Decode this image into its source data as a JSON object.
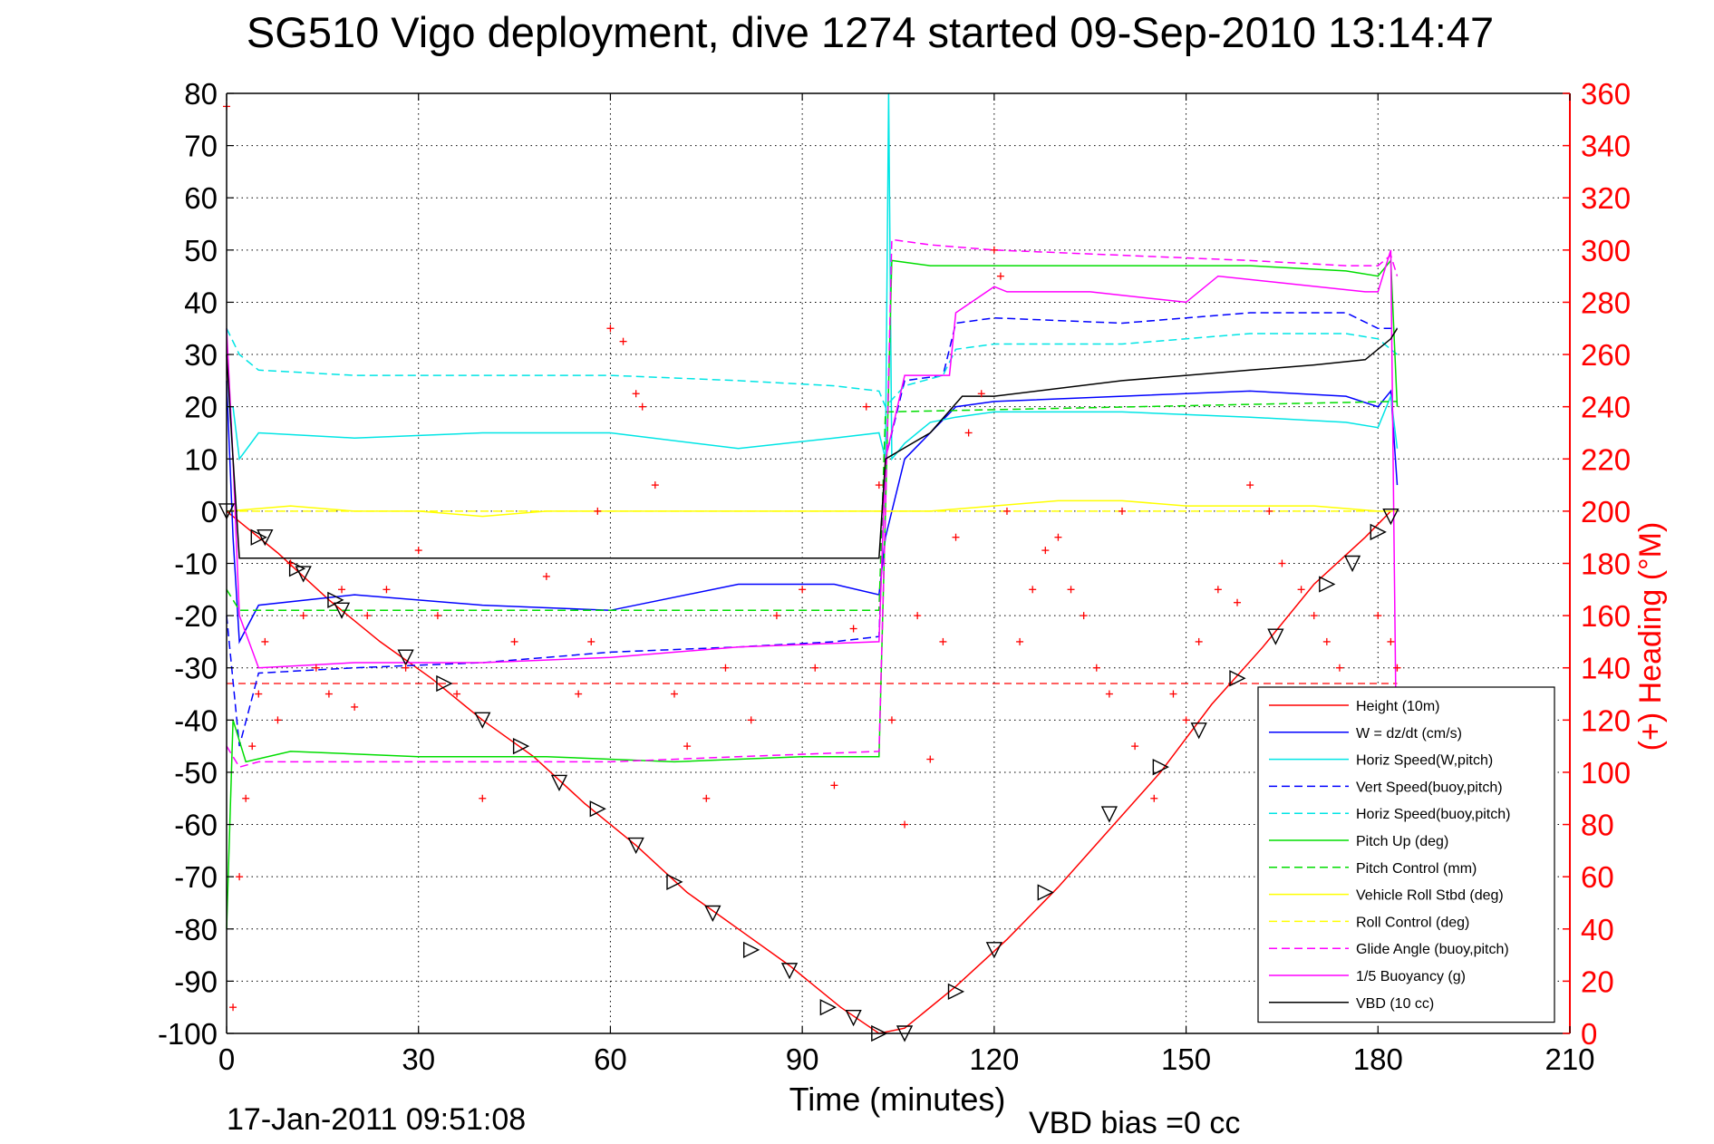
{
  "chart_data": {
    "type": "line",
    "title": "SG510 Vigo deployment, dive 1274 started 09-Sep-2010 13:14:47",
    "xlabel": "Time (minutes)",
    "ylabel_right": "(+) Heading (°M)",
    "xlim": [
      0,
      210
    ],
    "ylim": [
      -100,
      80
    ],
    "ylim_right": [
      0,
      360
    ],
    "xticks": [
      0,
      30,
      60,
      90,
      120,
      150,
      180,
      210
    ],
    "yticks": [
      -100,
      -90,
      -80,
      -70,
      -60,
      -50,
      -40,
      -30,
      -20,
      -10,
      0,
      10,
      20,
      30,
      40,
      50,
      60,
      70,
      80
    ],
    "yticks_right": [
      0,
      20,
      40,
      60,
      80,
      100,
      120,
      140,
      160,
      180,
      200,
      220,
      240,
      260,
      280,
      300,
      320,
      340,
      360
    ],
    "grid": true,
    "legend_position": "lower-right",
    "footer_date": "17-Jan-2011 09:51:08",
    "footer_bias": "VBD bias =0 cc",
    "colors": {
      "red": "#ff0000",
      "blue": "#0000ff",
      "cyan": "#00e5e5",
      "green": "#00dd00",
      "yellow": "#ffff00",
      "magenta": "#ff00ff",
      "black": "#000000"
    },
    "series": [
      {
        "name": "Height (10m)",
        "color": "#ff0000",
        "style": "solid",
        "x": [
          0,
          8,
          16,
          24,
          32,
          40,
          48,
          56,
          64,
          72,
          80,
          88,
          96,
          102,
          106,
          114,
          122,
          130,
          138,
          146,
          154,
          162,
          170,
          178,
          182
        ],
        "y": [
          0,
          -8,
          -17,
          -25,
          -32,
          -40,
          -47,
          -56,
          -64,
          -73,
          -80,
          -87,
          -95,
          -100,
          -99,
          -91,
          -82,
          -72,
          -61,
          -50,
          -37,
          -26,
          -14,
          -5,
          0
        ]
      },
      {
        "name": "W = dz/dt (cm/s)",
        "color": "#0000ff",
        "style": "solid",
        "x": [
          0,
          1,
          2,
          5,
          20,
          40,
          60,
          80,
          95,
          102,
          103,
          106,
          110,
          114,
          120,
          140,
          160,
          175,
          180,
          182,
          183
        ],
        "y": [
          25,
          -5,
          -25,
          -18,
          -16,
          -18,
          -19,
          -14,
          -14,
          -16,
          -5,
          10,
          15,
          20,
          21,
          22,
          23,
          22,
          20,
          23,
          5
        ]
      },
      {
        "name": "Horiz Speed(W,pitch)",
        "color": "#00e5e5",
        "style": "solid",
        "x": [
          0,
          1,
          2,
          5,
          20,
          40,
          60,
          80,
          95,
          102,
          103,
          103.5,
          104,
          106,
          110,
          114,
          120,
          140,
          160,
          175,
          180,
          182,
          183
        ],
        "y": [
          20,
          20,
          10,
          15,
          14,
          15,
          15,
          12,
          14,
          15,
          10,
          80,
          10,
          13,
          17,
          18,
          19,
          19,
          18,
          17,
          16,
          22,
          12
        ]
      },
      {
        "name": "Vert Speed(buoy,pitch)",
        "color": "#0000ff",
        "style": "dashed",
        "x": [
          0,
          2,
          5,
          20,
          40,
          60,
          80,
          95,
          102,
          103,
          106,
          112,
          114,
          120,
          140,
          160,
          175,
          180,
          183
        ],
        "y": [
          -20,
          -45,
          -31,
          -30,
          -29,
          -27,
          -26,
          -25,
          -24,
          10,
          25,
          26,
          36,
          37,
          36,
          38,
          38,
          35,
          35
        ]
      },
      {
        "name": "Horiz Speed(buoy,pitch)",
        "color": "#00e5e5",
        "style": "dashed",
        "x": [
          0,
          2,
          5,
          20,
          40,
          60,
          80,
          95,
          102,
          103,
          106,
          112,
          114,
          120,
          140,
          160,
          175,
          180,
          183
        ],
        "y": [
          35,
          30,
          27,
          26,
          26,
          26,
          25,
          24,
          23,
          20,
          24,
          26,
          31,
          32,
          32,
          34,
          34,
          33,
          30
        ]
      },
      {
        "name": "Pitch Up (deg)",
        "color": "#00dd00",
        "style": "solid",
        "x": [
          0,
          1,
          3,
          10,
          30,
          50,
          70,
          90,
          102,
          103,
          104,
          110,
          120,
          140,
          160,
          175,
          180,
          182,
          183
        ],
        "y": [
          -80,
          -40,
          -48,
          -46,
          -47,
          -47,
          -48,
          -47,
          -47,
          0,
          48,
          47,
          47,
          47,
          47,
          46,
          45,
          48,
          20
        ]
      },
      {
        "name": "Pitch Control (mm)",
        "color": "#00dd00",
        "style": "dashed",
        "x": [
          0,
          2,
          102,
          103,
          182,
          183
        ],
        "y": [
          -15,
          -19,
          -19,
          19,
          21,
          21
        ]
      },
      {
        "name": "Vehicle Roll Stbd (deg)",
        "color": "#ffff00",
        "style": "solid",
        "x": [
          0,
          10,
          20,
          30,
          40,
          50,
          60,
          70,
          80,
          90,
          100,
          110,
          120,
          130,
          140,
          150,
          160,
          170,
          180,
          183
        ],
        "y": [
          0,
          1,
          0,
          0,
          -1,
          0,
          0,
          0,
          0,
          0,
          0,
          0,
          1,
          2,
          2,
          1,
          1,
          1,
          0,
          0
        ]
      },
      {
        "name": "Roll Control (deg)",
        "color": "#ffff00",
        "style": "dashed",
        "x": [
          0,
          4,
          8,
          16,
          24,
          40,
          50,
          60,
          70,
          80,
          90,
          100,
          110,
          120,
          140,
          150,
          160,
          170,
          180
        ],
        "y": [
          0,
          0,
          0,
          0,
          0,
          0,
          0,
          0,
          0,
          0,
          0,
          0,
          0,
          0,
          0,
          0,
          0,
          0,
          0
        ]
      },
      {
        "name": "Glide Angle (buoy,pitch)",
        "color": "#ff00ff",
        "style": "dashed",
        "x": [
          0,
          2,
          5,
          20,
          40,
          60,
          80,
          102,
          103,
          104,
          110,
          120,
          140,
          160,
          175,
          180,
          182,
          183
        ],
        "y": [
          -45,
          -49,
          -48,
          -48,
          -48,
          -48,
          -47,
          -46,
          0,
          52,
          51,
          50,
          49,
          48,
          47,
          47,
          49,
          45
        ]
      },
      {
        "name": "1/5 Buoyancy (g)",
        "color": "#ff00ff",
        "style": "solid",
        "x": [
          0,
          1,
          2,
          5,
          20,
          40,
          60,
          80,
          102,
          103,
          106,
          113,
          114,
          120,
          122,
          135,
          150,
          155,
          178,
          180,
          182,
          183
        ],
        "y": [
          35,
          10,
          -20,
          -30,
          -29,
          -29,
          -28,
          -26,
          -25,
          10,
          26,
          26,
          38,
          43,
          42,
          42,
          40,
          45,
          42,
          42,
          50,
          -60
        ]
      },
      {
        "name": "VBD (10 cc)",
        "color": "#000000",
        "style": "solid",
        "x": [
          0,
          1,
          2,
          102,
          103,
          110,
          115,
          120,
          140,
          150,
          160,
          170,
          178,
          182,
          183
        ],
        "y": [
          30,
          10,
          -9,
          -9,
          10,
          15,
          22,
          22,
          25,
          26,
          27,
          28,
          29,
          33,
          35
        ]
      }
    ],
    "markers": {
      "triangle_down": {
        "x": [
          0,
          6,
          12,
          18,
          28,
          40,
          52,
          64,
          76,
          88,
          98,
          106,
          120,
          138,
          152,
          164,
          176,
          182
        ],
        "y": [
          0,
          -5,
          -12,
          -19,
          -28,
          -40,
          -52,
          -64,
          -77,
          -88,
          -97,
          -100,
          -84,
          -58,
          -42,
          -24,
          -10,
          -1
        ]
      },
      "triangle_right": {
        "x": [
          5,
          11,
          17,
          34,
          46,
          58,
          70,
          82,
          94,
          102,
          114,
          128,
          146,
          158,
          172,
          180
        ],
        "y": [
          -5,
          -11,
          -17,
          -33,
          -45,
          -57,
          -71,
          -84,
          -95,
          -100,
          -92,
          -73,
          -49,
          -32,
          -14,
          -4
        ]
      },
      "heading_plus": {
        "y_axis": "right",
        "x": [
          0,
          1,
          2,
          3,
          4,
          5,
          6,
          8,
          10,
          12,
          14,
          16,
          18,
          20,
          22,
          25,
          28,
          30,
          33,
          36,
          40,
          45,
          50,
          55,
          57,
          58,
          60,
          62,
          64,
          65,
          67,
          70,
          72,
          75,
          78,
          82,
          86,
          90,
          92,
          95,
          98,
          100,
          102,
          104,
          106,
          108,
          110,
          112,
          114,
          116,
          118,
          120,
          121,
          122,
          124,
          126,
          128,
          130,
          132,
          134,
          136,
          138,
          140,
          142,
          145,
          148,
          150,
          152,
          155,
          158,
          160,
          163,
          165,
          168,
          170,
          172,
          174,
          176,
          178,
          180,
          182,
          183
        ],
        "y": [
          355,
          10,
          60,
          90,
          110,
          130,
          150,
          120,
          180,
          160,
          140,
          130,
          170,
          125,
          160,
          170,
          140,
          185,
          160,
          130,
          90,
          150,
          175,
          130,
          150,
          200,
          270,
          265,
          245,
          240,
          210,
          130,
          110,
          90,
          140,
          120,
          160,
          170,
          140,
          95,
          155,
          240,
          210,
          120,
          80,
          160,
          105,
          150,
          190,
          230,
          245,
          300,
          290,
          200,
          150,
          170,
          185,
          190,
          170,
          160,
          140,
          130,
          200,
          110,
          90,
          130,
          120,
          150,
          170,
          165,
          210,
          200,
          180,
          170,
          160,
          150,
          140,
          130,
          120,
          160,
          150,
          140
        ]
      }
    },
    "reference_lines": [
      {
        "color": "#ff0000",
        "style": "dashed",
        "y": -33,
        "x": [
          0,
          183
        ]
      }
    ]
  }
}
